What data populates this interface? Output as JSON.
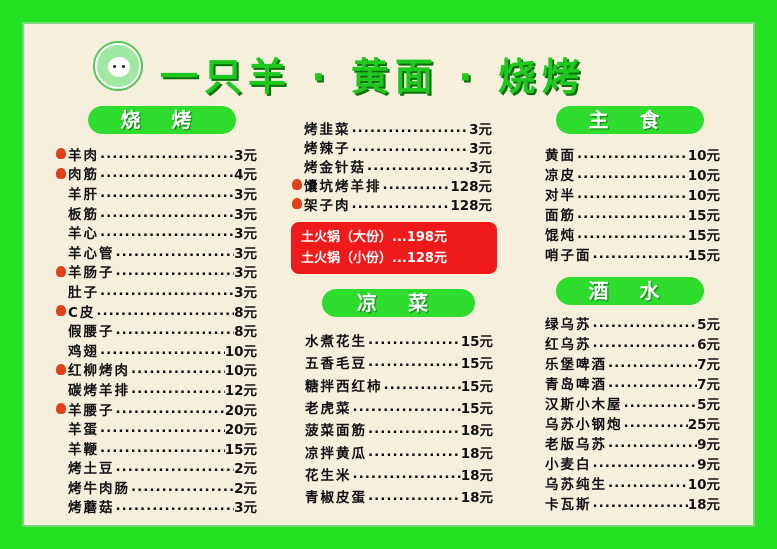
{
  "title": "一只羊 · 黄面 · 烧烤",
  "logo_icon": "sheep-icon",
  "colors": {
    "border": "#22e022",
    "pill": "#2ddc2d",
    "hotpot": "#f01a1a",
    "background": "#f5efdc"
  },
  "sections": {
    "bbq": {
      "header": "烧 烤",
      "items": [
        {
          "name": "羊肉",
          "price": "3元",
          "recommended": true
        },
        {
          "name": "肉筋",
          "price": "4元",
          "recommended": true
        },
        {
          "name": "羊肝",
          "price": "3元"
        },
        {
          "name": "板筋",
          "price": "3元"
        },
        {
          "name": "羊心",
          "price": "3元"
        },
        {
          "name": "羊心管",
          "price": "3元"
        },
        {
          "name": "羊肠子",
          "price": "3元",
          "recommended": true
        },
        {
          "name": "肚子",
          "price": "3元"
        },
        {
          "name": "C皮",
          "price": "8元",
          "recommended": true
        },
        {
          "name": "假腰子",
          "price": "8元"
        },
        {
          "name": "鸡翅",
          "price": "10元"
        },
        {
          "name": "红柳烤肉",
          "price": "10元",
          "recommended": true
        },
        {
          "name": "碳烤羊排",
          "price": "12元"
        },
        {
          "name": "羊腰子",
          "price": "20元",
          "recommended": true
        },
        {
          "name": "羊蛋",
          "price": "20元"
        },
        {
          "name": "羊鞭",
          "price": "15元"
        },
        {
          "name": "烤土豆",
          "price": "2元"
        },
        {
          "name": "烤牛肉肠",
          "price": "2元"
        },
        {
          "name": "烤蘑菇",
          "price": "3元"
        }
      ]
    },
    "bbq2": {
      "items": [
        {
          "name": "烤韭菜",
          "price": "3元"
        },
        {
          "name": "烤辣子",
          "price": "3元"
        },
        {
          "name": "烤金针菇",
          "price": "3元"
        },
        {
          "name": "馕坑烤羊排",
          "price": "128元",
          "recommended": true
        },
        {
          "name": "架子肉",
          "price": "128元",
          "recommended": true
        }
      ]
    },
    "hotpot": [
      "土火锅（大份）...198元",
      "土火锅（小份）...128元"
    ],
    "cold": {
      "header": "凉 菜",
      "items": [
        {
          "name": "水煮花生",
          "price": "15元"
        },
        {
          "name": "五香毛豆",
          "price": "15元"
        },
        {
          "name": "糖拌西红柿",
          "price": "15元"
        },
        {
          "name": "老虎菜",
          "price": "15元"
        },
        {
          "name": "菠菜面筋",
          "price": "18元"
        },
        {
          "name": "凉拌黄瓜",
          "price": "18元"
        },
        {
          "name": "花生米",
          "price": "18元"
        },
        {
          "name": "青椒皮蛋",
          "price": "18元"
        }
      ]
    },
    "staple": {
      "header": "主 食",
      "items": [
        {
          "name": "黄面",
          "price": "10元"
        },
        {
          "name": "凉皮",
          "price": "10元"
        },
        {
          "name": "对半",
          "price": "10元"
        },
        {
          "name": "面筋",
          "price": "15元"
        },
        {
          "name": "馄炖",
          "price": "15元"
        },
        {
          "name": "哨子面",
          "price": "15元"
        }
      ]
    },
    "drinks": {
      "header": "酒 水",
      "items": [
        {
          "name": "绿乌苏",
          "price": "5元"
        },
        {
          "name": "红乌苏",
          "price": "6元"
        },
        {
          "name": "乐堡啤酒",
          "price": "7元"
        },
        {
          "name": "青岛啤酒",
          "price": "7元"
        },
        {
          "name": "汉斯小木屋",
          "price": "5元"
        },
        {
          "name": "乌苏小钢炮",
          "price": "25元"
        },
        {
          "name": "老版乌苏",
          "price": "9元"
        },
        {
          "name": "小麦白",
          "price": "9元"
        },
        {
          "name": "乌苏纯生",
          "price": "10元"
        },
        {
          "name": "卡瓦斯",
          "price": "18元"
        }
      ]
    }
  }
}
